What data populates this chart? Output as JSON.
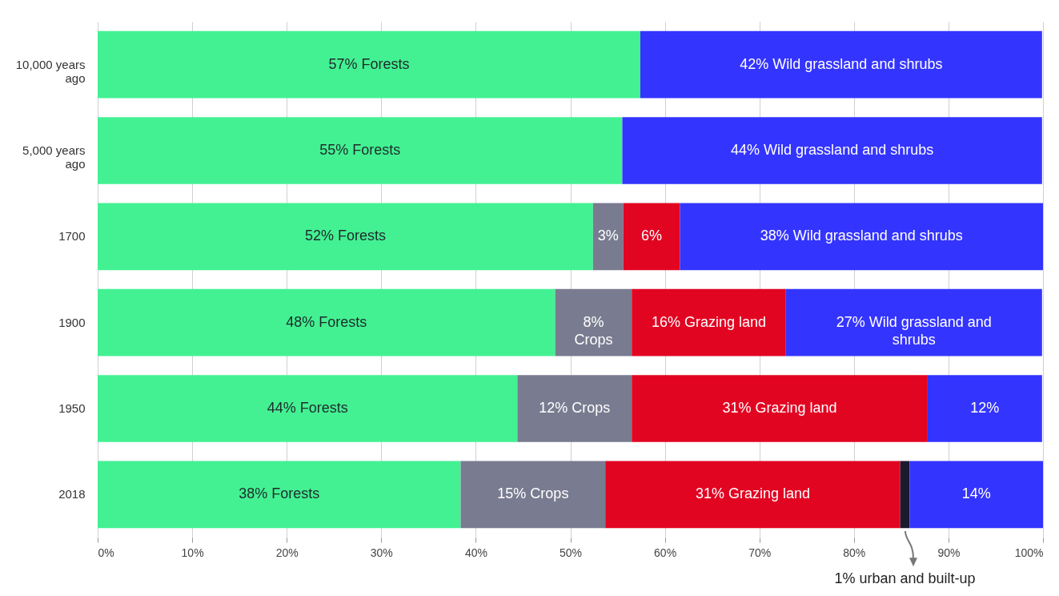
{
  "chart_data": {
    "type": "bar",
    "orientation": "horizontal",
    "stacked": true,
    "grid": "x",
    "categories": [
      "10,000 years ago",
      "5,000 years ago",
      "1700",
      "1900",
      "1950",
      "2018"
    ],
    "series": [
      {
        "color": "#43f193",
        "values": [
          57.4,
          55.5,
          52.4,
          48.4,
          44.4,
          38.4
        ],
        "value_labels": [
          "57% Forests",
          "55% Forests",
          "52% Forests",
          "48% Forests",
          "44% Forests",
          "38% Forests"
        ]
      },
      {
        "color": "#797b90",
        "values": [
          0,
          0,
          3.2,
          8.1,
          12.1,
          15.3
        ],
        "value_labels": [
          null,
          null,
          "3%",
          "8% Crops",
          "12% Crops",
          "15% Crops"
        ]
      },
      {
        "color": "#e20522",
        "values": [
          0,
          0,
          6.0,
          16.3,
          31.3,
          31.2
        ],
        "value_labels": [
          null,
          null,
          "6%",
          "16% Grazing land",
          "31% Grazing land",
          "31% Grazing land"
        ]
      },
      {
        "color": "#1c1a2e",
        "values": [
          0,
          0,
          0,
          0,
          0,
          1.0
        ],
        "value_labels": [
          null,
          null,
          null,
          null,
          null,
          null
        ]
      },
      {
        "color": "#3434ff",
        "values": [
          42.5,
          44.4,
          38.4,
          27.1,
          12.1,
          14.1
        ],
        "value_labels": [
          "42% Wild grassland and shrubs",
          "44% Wild grassland and shrubs",
          "38% Wild grassland and shrubs",
          "27% Wild grassland and shrubs",
          "12%",
          "14%"
        ]
      }
    ],
    "xlim": [
      0,
      100
    ],
    "xticks": [
      {
        "value": 0,
        "label": "0%"
      },
      {
        "value": 10,
        "label": "10%"
      },
      {
        "value": 20,
        "label": "20%"
      },
      {
        "value": 30,
        "label": "30%"
      },
      {
        "value": 40,
        "label": "40%"
      },
      {
        "value": 50,
        "label": "50%"
      },
      {
        "value": 60,
        "label": "60%"
      },
      {
        "value": 70,
        "label": "70%"
      },
      {
        "value": 80,
        "label": "80%"
      },
      {
        "value": 90,
        "label": "90%"
      },
      {
        "value": 100,
        "label": "100%"
      }
    ],
    "annotations": [
      {
        "text": "1% urban and built-up",
        "x": 85.4,
        "y": "2018"
      }
    ]
  }
}
